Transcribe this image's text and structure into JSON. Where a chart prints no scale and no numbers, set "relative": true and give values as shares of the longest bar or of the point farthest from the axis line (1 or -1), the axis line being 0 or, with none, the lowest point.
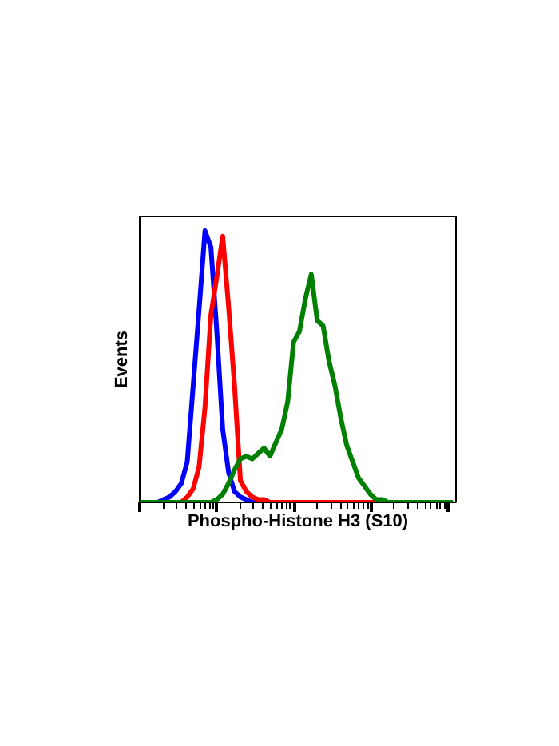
{
  "chart_data": {
    "type": "line",
    "relative": true,
    "xlabel": "Phospho-Histone H3 (S10)",
    "ylabel": "Events",
    "line_style": "solid",
    "categories": [
      null,
      null,
      null,
      null,
      null,
      null,
      null,
      null,
      null,
      null,
      null,
      null,
      null,
      null,
      null,
      null,
      null,
      null,
      null,
      null,
      null,
      null,
      null,
      null,
      null,
      null,
      null,
      null,
      null,
      null,
      null,
      null,
      null,
      null,
      null,
      null,
      null,
      null,
      null,
      null,
      null,
      null,
      null,
      null,
      null,
      null,
      null,
      null,
      null,
      null,
      null,
      null,
      null,
      null
    ],
    "series": [
      {
        "color": "#0000ff",
        "values": [
          null,
          null,
          0,
          0,
          0.01,
          0.02,
          0.04,
          0.07,
          0.15,
          0.43,
          0.71,
          1.0,
          0.94,
          0.63,
          0.27,
          0.11,
          0.04,
          0.02,
          0.01,
          0,
          0,
          0,
          null,
          null,
          null,
          null,
          null,
          null,
          null,
          null,
          null,
          null,
          null,
          null,
          null,
          null,
          null,
          null,
          null,
          null,
          null,
          null,
          null,
          null,
          null,
          null,
          null,
          null,
          null,
          null,
          null,
          null,
          null,
          null
        ]
      },
      {
        "color": "#ff0000",
        "values": [
          null,
          null,
          null,
          null,
          null,
          0,
          0,
          0,
          0.02,
          0.05,
          0.13,
          0.35,
          0.69,
          0.83,
          0.98,
          0.72,
          0.43,
          0.08,
          0.04,
          0.02,
          0.01,
          0.01,
          0,
          0,
          0,
          0,
          0,
          0,
          0,
          0,
          0,
          0,
          0,
          0,
          0,
          0,
          0,
          0,
          0,
          0,
          0,
          0,
          0,
          null,
          null,
          null,
          null,
          null,
          null,
          null,
          null,
          null,
          null,
          null
        ]
      },
      {
        "color": "#008000",
        "values": [
          0,
          0,
          0,
          0,
          0,
          0,
          0,
          0,
          0,
          0,
          0,
          0,
          0,
          0.01,
          0.03,
          0.07,
          0.12,
          0.16,
          0.17,
          0.16,
          0.18,
          0.2,
          0.17,
          0.22,
          0.27,
          0.37,
          0.59,
          0.63,
          0.75,
          0.84,
          0.67,
          0.65,
          0.52,
          0.43,
          0.31,
          0.21,
          0.15,
          0.09,
          0.06,
          0.03,
          0.01,
          0.01,
          0,
          0,
          0,
          0,
          0,
          0,
          0,
          0,
          0,
          0,
          0,
          0
        ]
      }
    ]
  }
}
